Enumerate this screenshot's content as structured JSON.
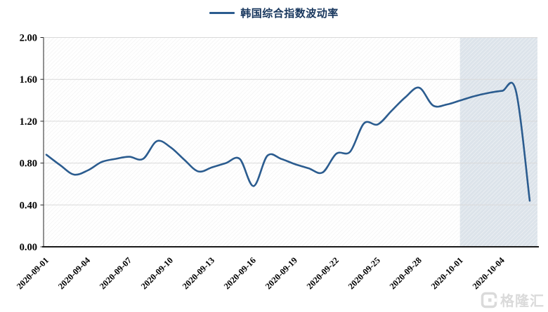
{
  "legend": {
    "label": "韩国综合指数波动率",
    "line_color": "#2b5c8f",
    "text_color": "#17365d"
  },
  "watermark": {
    "text": "格隆汇"
  },
  "colors": {
    "line": "#2b5c8f",
    "gridline": "#d9d9d9",
    "axis": "#1a1a1a",
    "tick_label": "#000000",
    "highlight_fill": "#dce3ea",
    "hatch_line": "#f0f0f0"
  },
  "chart_data": {
    "type": "line",
    "title": "韩国综合指数波动率",
    "xlabel": "",
    "ylabel": "",
    "ylim": [
      0,
      2
    ],
    "ytick_values": [
      0,
      0.4,
      0.8,
      1.2,
      1.6,
      2.0
    ],
    "ytick_labels": [
      "0.00",
      "0.40",
      "0.80",
      "1.20",
      "1.60",
      "2.00"
    ],
    "xtick_labels": [
      "2020-09-01",
      "2020-09-04",
      "2020-09-07",
      "2020-09-10",
      "2020-09-13",
      "2020-09-16",
      "2020-09-19",
      "2020-09-22",
      "2020-09-25",
      "2020-09-28",
      "2020-10-01",
      "2020-10-04"
    ],
    "grid": "horizontal",
    "legend_position": "top-center",
    "hatch_background": true,
    "highlight_region": {
      "from": "2020-10-01",
      "to": "2020-10-06",
      "fill": "#dce3ea"
    },
    "series": [
      {
        "name": "韩国综合指数波动率",
        "color": "#2b5c8f",
        "x": [
          "2020-09-01",
          "2020-09-02",
          "2020-09-03",
          "2020-09-04",
          "2020-09-05",
          "2020-09-06",
          "2020-09-07",
          "2020-09-08",
          "2020-09-09",
          "2020-09-10",
          "2020-09-11",
          "2020-09-12",
          "2020-09-13",
          "2020-09-14",
          "2020-09-15",
          "2020-09-16",
          "2020-09-17",
          "2020-09-18",
          "2020-09-19",
          "2020-09-20",
          "2020-09-21",
          "2020-09-22",
          "2020-09-23",
          "2020-09-24",
          "2020-09-25",
          "2020-09-26",
          "2020-09-27",
          "2020-09-28",
          "2020-09-29",
          "2020-09-30",
          "2020-10-01",
          "2020-10-02",
          "2020-10-03",
          "2020-10-04",
          "2020-10-05",
          "2020-10-06"
        ],
        "values": [
          0.88,
          0.78,
          0.69,
          0.73,
          0.81,
          0.84,
          0.86,
          0.84,
          1.01,
          0.95,
          0.83,
          0.72,
          0.76,
          0.8,
          0.84,
          0.58,
          0.87,
          0.84,
          0.79,
          0.75,
          0.71,
          0.89,
          0.91,
          1.18,
          1.17,
          1.3,
          1.43,
          1.52,
          1.35,
          1.36,
          1.4,
          1.44,
          1.47,
          1.49,
          1.49,
          0.44
        ]
      }
    ]
  }
}
